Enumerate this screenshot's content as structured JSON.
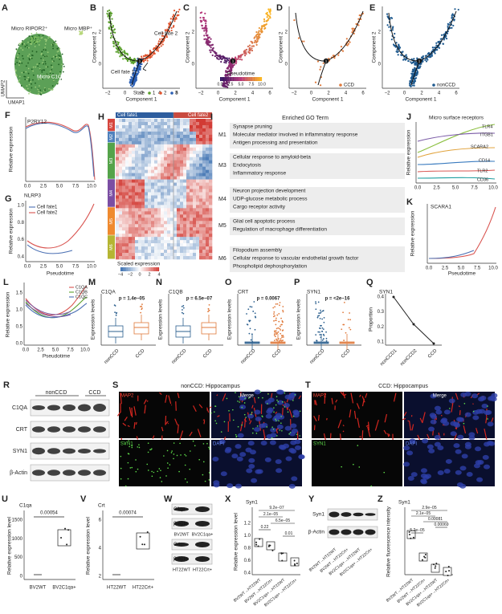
{
  "panels": {
    "A": {
      "label": "A",
      "cell_types": [
        "Micro RIPOR2⁺",
        "Micro MBP⁺",
        "Micro C1QA⁺"
      ],
      "x_axis": "UMAP1",
      "y_axis": "UMAP2"
    },
    "B": {
      "label": "B",
      "fates": [
        "Cell fate 2",
        "Cell fate 1"
      ],
      "legend_title": "State",
      "states": [
        "1",
        "2",
        "3"
      ],
      "x_axis": "Component 1",
      "y_axis": "Component 2",
      "xticks": [
        "−2",
        "0",
        "2",
        "4",
        "6"
      ],
      "yticks": [
        "2",
        "0"
      ]
    },
    "C": {
      "label": "C",
      "x_axis": "Component 1",
      "y_axis": "Component 2",
      "xticks": [
        "−2",
        "0",
        "2",
        "4",
        "6"
      ],
      "yticks": [
        "2",
        "0"
      ],
      "colorbar_title": "Pseudotime",
      "colorbar_ticks": [
        "0.0",
        "2.5",
        "5.0",
        "7.5",
        "10.0"
      ]
    },
    "D": {
      "label": "D",
      "x_axis": "Component 1",
      "y_axis": "Component 2",
      "xticks": [
        "−2",
        "0",
        "2",
        "4",
        "6"
      ],
      "yticks": [
        "2",
        "0"
      ],
      "legend": "CCD"
    },
    "E": {
      "label": "E",
      "x_axis": "Component 1",
      "y_axis": "Component 2",
      "xticks": [
        "−2",
        "0",
        "2",
        "4",
        "6"
      ],
      "yticks": [
        "2",
        "0"
      ],
      "legend": "nonCCD"
    },
    "F": {
      "label": "F",
      "gene": "P2RY12",
      "y_axis": "Relative expression",
      "xticks": [
        "0.0",
        "2.5",
        "5.0",
        "7.5",
        "10.0"
      ]
    },
    "G": {
      "label": "G",
      "gene": "NLRP3",
      "legend": [
        "Cell fate1",
        "Cell fate2"
      ],
      "y_axis": "Relative expression",
      "x_axis": "Pseudotime",
      "xticks": [
        "0.0",
        "2.5",
        "5.0",
        "7.5",
        "10.0"
      ],
      "yticks": [
        "1.0",
        "0.8",
        "0.6",
        "0.4"
      ]
    },
    "H": {
      "label": "H",
      "fates": [
        "Cell fate1",
        "Cell fate2"
      ],
      "modules": [
        "M1",
        "M2",
        "M3",
        "M4",
        "M5",
        "M6"
      ],
      "colorbar_title": "Scaled expression",
      "colorbar_ticks": [
        "−4",
        "−2",
        "0",
        "2",
        "4"
      ]
    },
    "I": {
      "label": "I",
      "title": "Enriched GO Term",
      "groups": [
        {
          "module": "M1",
          "terms": [
            "Synapse pruning",
            "Molecular mediator involved in inflammatory response",
            "Antigen processing and presentation"
          ]
        },
        {
          "module": "M3",
          "terms": [
            "Cellular response to amyloid-beta",
            "Endocytosis",
            "Inflammatory response"
          ]
        },
        {
          "module": "M4",
          "terms": [
            "Neuron projection development",
            "UDP-glucose metabolic process",
            "Cargo receptor activity"
          ]
        },
        {
          "module": "M5",
          "terms": [
            "Glial cell apoptotic process",
            "Regulation of macrophage differentiation"
          ]
        },
        {
          "module": "M6",
          "terms": [
            "Filopodium assembly",
            "Cellular response to vascular endothelial growth factor",
            "Phospholipid dephosphorylation"
          ]
        }
      ]
    },
    "J": {
      "label": "J",
      "title": "Micro surface receptors",
      "genes": [
        "TLR4",
        "ITGB1",
        "SCARA2",
        "CD14",
        "TLR2",
        "CD36"
      ],
      "y_axis": "Relative expression",
      "xticks": [
        "0.0",
        "2.5",
        "5.0",
        "7.5",
        "10.0"
      ]
    },
    "K": {
      "label": "K",
      "gene": "SCARA1",
      "y_axis": "Relative expression",
      "x_axis": "Pseudotime",
      "xticks": [
        "0.0",
        "2.5",
        "5.0",
        "7.5",
        "10.0"
      ]
    },
    "L": {
      "label": "L",
      "genes": [
        "C1QA",
        "C1QB",
        "C1QC"
      ],
      "y_axis": "Relative expression",
      "x_axis": "Pseudotime",
      "xticks": [
        "0.0",
        "2.5",
        "5.0",
        "7.5",
        "10.0"
      ],
      "yticks": [
        "1.5",
        "1.0",
        "0.5",
        "0.0"
      ]
    },
    "M": {
      "label": "M",
      "gene": "C1QA",
      "p": "p = 1.4e−05",
      "groups": [
        "nonCCD",
        "CCD"
      ],
      "y_axis": "Expression levels"
    },
    "N": {
      "label": "N",
      "gene": "C1QB",
      "p": "p = 6.5e−07",
      "groups": [
        "nonCCD",
        "CCD"
      ],
      "y_axis": "Expression levels"
    },
    "O": {
      "label": "O",
      "gene": "CRT",
      "p": "p = 0.0067",
      "groups": [
        "nonCCD",
        "CCD"
      ],
      "y_axis": "Expression levels"
    },
    "P": {
      "label": "P",
      "gene": "SYN1",
      "p": "p = <2e−16",
      "groups": [
        "nonCCD",
        "CCD"
      ],
      "y_axis": "Expression levels"
    },
    "Q": {
      "label": "Q",
      "gene": "SYN1",
      "y_axis": "Proportion",
      "groups": [
        "nonCCD1",
        "nonCCD2",
        "CCD"
      ],
      "yticks": [
        "0.4",
        "0.3",
        "0.2",
        "0.1"
      ]
    },
    "R": {
      "label": "R",
      "groups": [
        "nonCCD",
        "CCD"
      ],
      "proteins": [
        "C1QA",
        "CRT",
        "SYN1",
        "β-Actin"
      ]
    },
    "S": {
      "label": "S",
      "title": "nonCCD: Hippocampus",
      "channels": [
        "MAP2",
        "Merge",
        "SYN1",
        "DAPI"
      ]
    },
    "T": {
      "label": "T",
      "title": "CCD: Hippocampus",
      "channels": [
        "MAP2",
        "Merge",
        "SYN1",
        "DAPI"
      ]
    },
    "U": {
      "label": "U",
      "gene": "C1qa",
      "p": "0.00054",
      "groups": [
        "BV2WT",
        "BV2C1qa+"
      ],
      "y_axis": "Relative expression level",
      "yticks": [
        "1500",
        "1000",
        "500",
        "0"
      ]
    },
    "V": {
      "label": "V",
      "gene": "Crt",
      "p": "0.00074",
      "groups": [
        "HT22WT",
        "HT22Crt+"
      ],
      "y_axis": "Relative expression level",
      "yticks": [
        "6",
        "4",
        "2"
      ]
    },
    "W": {
      "label": "W",
      "blots": [
        "C1qa",
        "β-Actin",
        "Crt",
        "β-Actin"
      ],
      "groups": [
        "BV2WT",
        "BV2C1qa+",
        "HT22WT",
        "HT22Crt+"
      ]
    },
    "X": {
      "label": "X",
      "gene": "Syn1",
      "p": [
        "9.2e−07",
        "2.1e−05",
        "6.5e−05",
        "0.22",
        "0.01"
      ],
      "y_axis": "Relative expression level",
      "yticks": [
        "1.2",
        "1.0",
        "0.8",
        "0.6",
        "0.4"
      ],
      "groups": [
        "BV2WT→HT22WT",
        "BV2WT→HT22Crt+",
        "BV2C1qa+→HT22WT",
        "BV2C1qa+→HT22Crt+"
      ]
    },
    "Y": {
      "label": "Y",
      "blots": [
        "Syn1",
        "β-Actin"
      ],
      "groups": [
        "BV2WT→HT22WT",
        "BV2WT→HT22Crt+",
        "BV2C1qa+→HT22WT",
        "BV2C1qa+→HT22Crt+"
      ]
    },
    "Z": {
      "label": "Z",
      "gene": "Syn1",
      "p": [
        "2.9e−05",
        "2.1e−05",
        "0.00081",
        "0.00069",
        "5.2e−05"
      ],
      "y_axis": "Relative fluorescence intensity",
      "groups": [
        "BV2WT→HT22WT",
        "BV2WT→HT22Crt+",
        "BV2C1qa+→HT22WT",
        "BV2C1qa+→HT22Crt+"
      ]
    }
  }
}
